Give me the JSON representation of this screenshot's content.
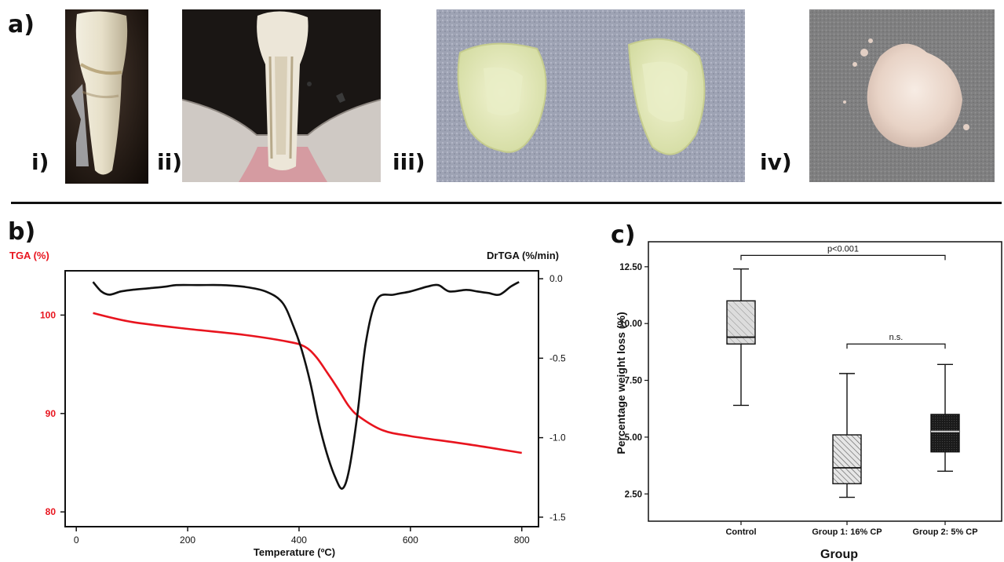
{
  "figure": {
    "panel_a": "a)",
    "panel_b": "b)",
    "panel_c": "c)",
    "photos": [
      {
        "label": "i)",
        "icon": "tooth-photo-icon"
      },
      {
        "label": "ii)",
        "icon": "sectioned-tooth-photo-icon"
      },
      {
        "label": "iii)",
        "icon": "crown-fragments-photo-icon"
      },
      {
        "label": "iv)",
        "icon": "powder-photo-icon"
      }
    ]
  },
  "chart_data": [
    {
      "type": "line",
      "xlabel": "Temperature (ºC)",
      "y_left_label": "TGA (%)",
      "y_right_label": "DrTGA (%/min)",
      "x_ticks": [
        "0",
        "200",
        "400",
        "600",
        "800"
      ],
      "y_left_ticks": [
        "80",
        "90",
        "100"
      ],
      "y_right_ticks": [
        "0.0",
        "-0.5",
        "-1.0",
        "-1.5"
      ],
      "xlim": [
        -20,
        830
      ],
      "y_left_lim": [
        78.5,
        104.5
      ],
      "y_right_lim": [
        -1.56,
        0.05
      ],
      "series": [
        {
          "axis": "left",
          "color": "#e8141e",
          "x": [
            30,
            100,
            200,
            300,
            380,
            410,
            430,
            450,
            470,
            490,
            510,
            550,
            600,
            700,
            800
          ],
          "y": [
            100.2,
            99.3,
            98.6,
            98.0,
            97.3,
            96.8,
            95.8,
            94.2,
            92.5,
            90.7,
            89.6,
            88.3,
            87.7,
            86.9,
            86.0
          ]
        },
        {
          "axis": "right",
          "color": "#111111",
          "x": [
            30,
            45,
            60,
            80,
            100,
            130,
            160,
            180,
            220,
            260,
            300,
            340,
            370,
            390,
            405,
            420,
            435,
            450,
            465,
            478,
            490,
            505,
            520,
            540,
            570,
            600,
            630,
            650,
            670,
            700,
            720,
            740,
            760,
            780,
            795
          ],
          "y": [
            -0.02,
            -0.08,
            -0.1,
            -0.08,
            -0.07,
            -0.06,
            -0.05,
            -0.04,
            -0.04,
            -0.04,
            -0.05,
            -0.08,
            -0.15,
            -0.3,
            -0.45,
            -0.65,
            -0.9,
            -1.1,
            -1.25,
            -1.32,
            -1.2,
            -0.85,
            -0.4,
            -0.13,
            -0.1,
            -0.08,
            -0.05,
            -0.04,
            -0.08,
            -0.07,
            -0.08,
            -0.09,
            -0.1,
            -0.05,
            -0.02
          ]
        }
      ]
    },
    {
      "type": "box",
      "xlabel": "Group",
      "ylabel": "Percentage weight loss (%)",
      "categories": [
        "Control",
        "Group 1: 16% CP",
        "Group 2: 5% CP"
      ],
      "y_ticks": [
        "2.50",
        "5.00",
        "7.50",
        "10.00",
        "12.50"
      ],
      "ylim": [
        1.3,
        13.6
      ],
      "boxes": [
        {
          "min": 6.4,
          "q1": 9.1,
          "median": 9.4,
          "q3": 11.0,
          "max": 12.4,
          "fill": "#c8c8c8"
        },
        {
          "min": 2.35,
          "q1": 2.95,
          "median": 3.65,
          "q3": 5.1,
          "max": 7.8,
          "fill": "#d8d8d8"
        },
        {
          "min": 3.5,
          "q1": 4.35,
          "median": 5.25,
          "q3": 6.0,
          "max": 8.2,
          "fill": "#202020"
        }
      ],
      "annotations": [
        {
          "from": 0,
          "to": 2,
          "y": 13.0,
          "text": "p<0.001"
        },
        {
          "from": 1,
          "to": 2,
          "y": 9.1,
          "text": "n.s."
        }
      ]
    }
  ]
}
